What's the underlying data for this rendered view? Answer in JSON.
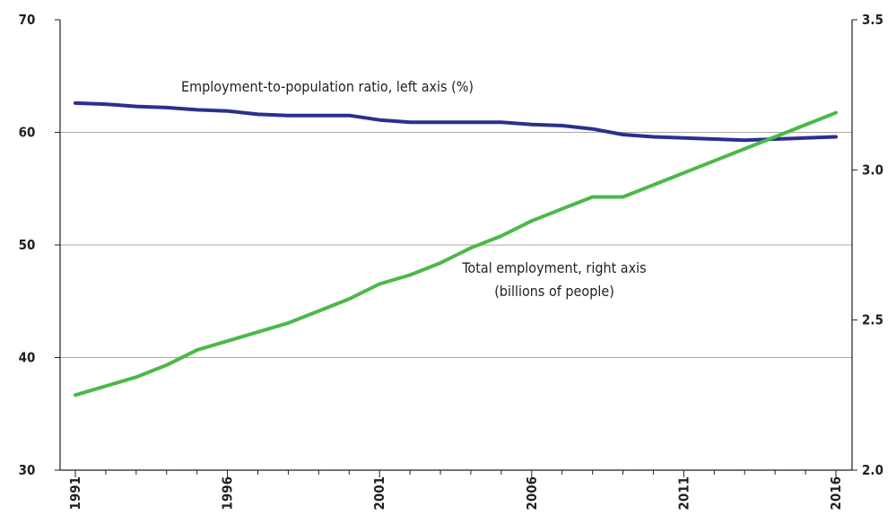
{
  "chart_data": {
    "type": "line",
    "x": [
      1991,
      1992,
      1993,
      1994,
      1995,
      1996,
      1997,
      1998,
      1999,
      2000,
      2001,
      2002,
      2003,
      2004,
      2005,
      2006,
      2007,
      2008,
      2009,
      2010,
      2011,
      2012,
      2013,
      2014,
      2015,
      2016
    ],
    "x_tick_labels": [
      "1991",
      "1996",
      "2001",
      "2006",
      "2011",
      "2016"
    ],
    "left_axis": {
      "ylim": [
        30,
        70
      ],
      "tick_labels": [
        "30",
        "40",
        "50",
        "60",
        "70"
      ]
    },
    "right_axis": {
      "ylim": [
        2.0,
        3.5
      ],
      "tick_labels": [
        "2.0",
        "2.5",
        "3.0",
        "3.5"
      ]
    },
    "grid": "horizontal",
    "series": [
      {
        "name": "Employment-to-population ratio, left axis  (%)",
        "axis": "left",
        "color": "#2b2f8f",
        "values": [
          62.6,
          62.5,
          62.3,
          62.2,
          62.0,
          61.9,
          61.6,
          61.5,
          61.5,
          61.5,
          61.1,
          60.9,
          60.9,
          60.9,
          60.9,
          60.7,
          60.6,
          60.3,
          59.8,
          59.6,
          59.5,
          59.4,
          59.3,
          59.4,
          59.5,
          59.6
        ]
      },
      {
        "name": "Total employment, right axis",
        "name_line2": "(billions of people)",
        "axis": "right",
        "color": "#4cb848",
        "values": [
          2.25,
          2.28,
          2.31,
          2.35,
          2.4,
          2.43,
          2.46,
          2.49,
          2.53,
          2.57,
          2.62,
          2.65,
          2.69,
          2.74,
          2.78,
          2.83,
          2.87,
          2.91,
          2.91,
          2.95,
          2.99,
          3.03,
          3.07,
          3.11,
          3.15,
          3.19
        ]
      }
    ]
  }
}
